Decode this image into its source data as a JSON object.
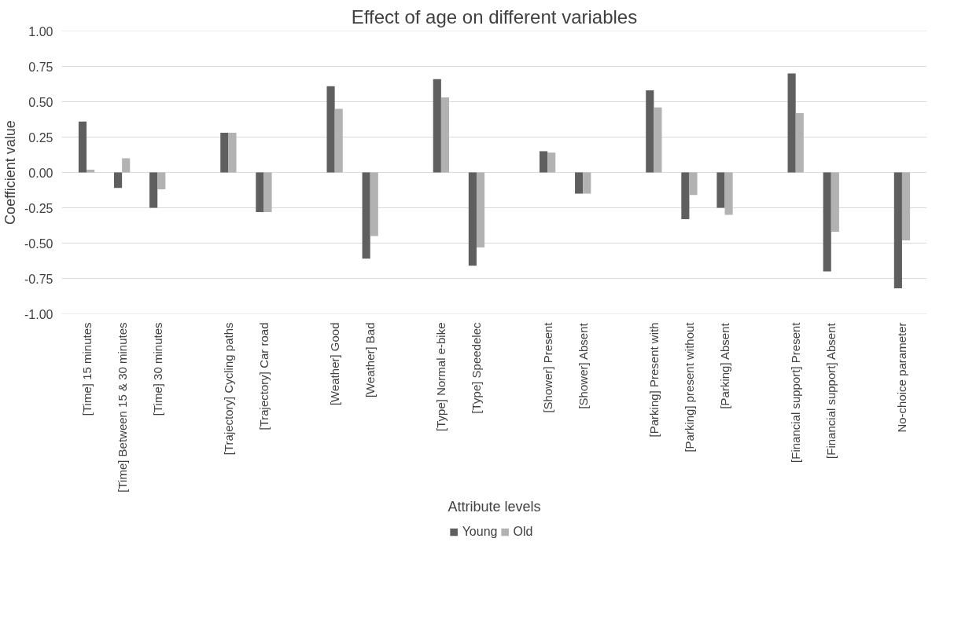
{
  "chart_data": {
    "type": "bar",
    "title": "Effect of age on different variables",
    "xlabel": "Attribute levels",
    "ylabel": "Coefficient value",
    "categories": [
      "[Time] 15 minutes",
      "[Time] Between 15 & 30 minutes",
      "[Time] 30 minutes",
      null,
      "[Trajectory] Cycling paths",
      "[Trajectory] Car road",
      null,
      "[Weather] Good",
      "[Weather] Bad",
      null,
      "[Type] Normal e-bike",
      "[Type] Speedelec",
      null,
      "[Shower] Present",
      "[Shower] Absent",
      null,
      "[Parking] Present with",
      "[Parking] present without",
      "[Parking] Absent",
      null,
      "[Financial support] Present",
      "[Financial support] Absent",
      null,
      "No-choice parameter"
    ],
    "series": [
      {
        "name": "Young",
        "color": "#5f5f5f",
        "values": [
          0.36,
          -0.11,
          -0.25,
          null,
          0.28,
          -0.28,
          null,
          0.61,
          -0.61,
          null,
          0.66,
          -0.66,
          null,
          0.15,
          -0.15,
          null,
          0.58,
          -0.33,
          -0.25,
          null,
          0.7,
          -0.7,
          null,
          -0.82
        ]
      },
      {
        "name": "Old",
        "color": "#b2b2b2",
        "values": [
          0.02,
          0.1,
          -0.12,
          null,
          0.28,
          -0.28,
          null,
          0.45,
          -0.45,
          null,
          0.53,
          -0.53,
          null,
          0.14,
          -0.15,
          null,
          0.46,
          -0.16,
          -0.3,
          null,
          0.42,
          -0.42,
          null,
          -0.48
        ]
      }
    ],
    "ylim": [
      -1,
      1
    ],
    "yticks": [
      {
        "value": -1,
        "label": "-1.00"
      },
      {
        "value": -0.75,
        "label": "-0.75"
      },
      {
        "value": -0.5,
        "label": "-0.50"
      },
      {
        "value": -0.25,
        "label": "-0.25"
      },
      {
        "value": 0,
        "label": "0.00"
      },
      {
        "value": 0.25,
        "label": "0.25"
      },
      {
        "value": 0.5,
        "label": "0.50"
      },
      {
        "value": 0.75,
        "label": "0.75"
      },
      {
        "value": 1,
        "label": "1.00"
      }
    ],
    "grid": "y",
    "legend": "bottom"
  }
}
